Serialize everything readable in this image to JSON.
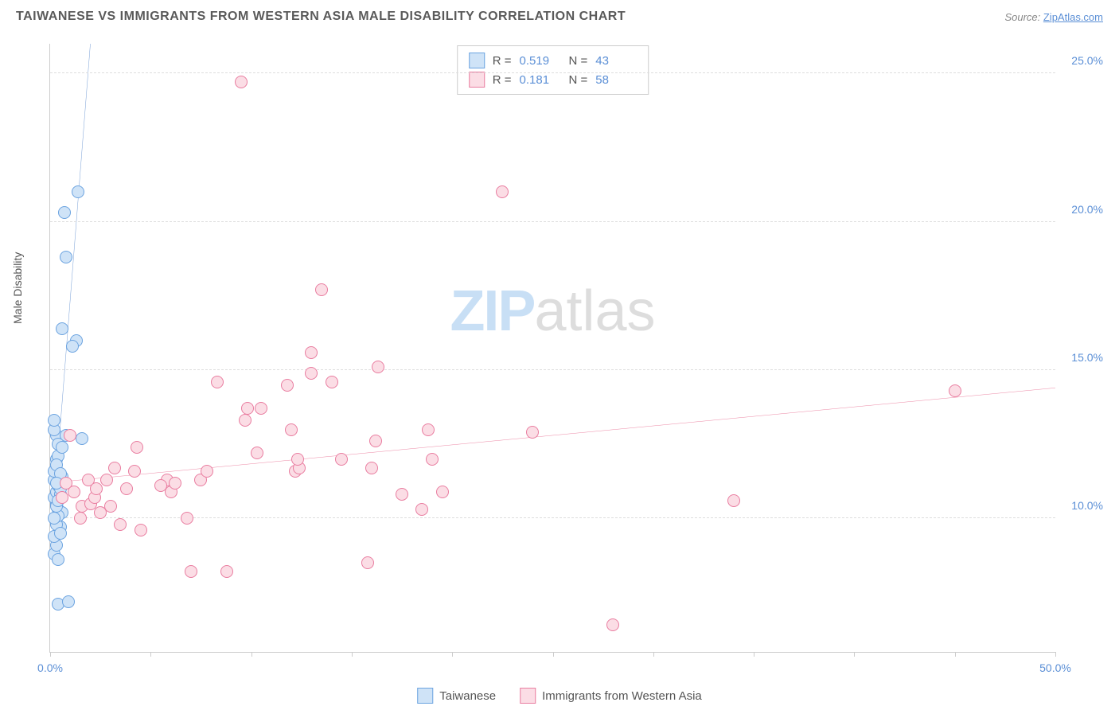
{
  "header": {
    "title": "TAIWANESE VS IMMIGRANTS FROM WESTERN ASIA MALE DISABILITY CORRELATION CHART",
    "source_prefix": "Source: ",
    "source_link": "ZipAtlas.com"
  },
  "watermark": {
    "zip": "ZIP",
    "atlas": "atlas"
  },
  "chart": {
    "type": "scatter",
    "y_axis_label": "Male Disability",
    "xlim": [
      0,
      50
    ],
    "ylim": [
      5.5,
      26
    ],
    "x_ticks": [
      0,
      5,
      10,
      15,
      20,
      25,
      30,
      35,
      40,
      45,
      50
    ],
    "x_tick_labels": {
      "0": "0.0%",
      "50": "50.0%"
    },
    "y_ticks": [
      10,
      15,
      20,
      25
    ],
    "y_tick_labels": {
      "10": "10.0%",
      "15": "15.0%",
      "20": "20.0%",
      "25": "25.0%"
    },
    "grid_color": "#dddddd",
    "axis_color": "#cccccc",
    "background_color": "#ffffff",
    "point_radius": 8,
    "series": [
      {
        "key": "taiwanese",
        "label": "Taiwanese",
        "R": "0.519",
        "N": "43",
        "fill": "#cfe3f7",
        "stroke": "#6ba3e0",
        "trend": {
          "color": "#3b74c4",
          "x1": 0.2,
          "y1": 10.5,
          "x2": 2.0,
          "y2": 26.0,
          "dash_beyond": true
        },
        "points": [
          [
            0.2,
            8.8
          ],
          [
            0.4,
            8.6
          ],
          [
            0.3,
            9.1
          ],
          [
            0.2,
            9.4
          ],
          [
            0.3,
            10.0
          ],
          [
            0.5,
            9.7
          ],
          [
            0.4,
            10.3
          ],
          [
            0.3,
            10.5
          ],
          [
            0.6,
            10.2
          ],
          [
            0.2,
            10.7
          ],
          [
            0.3,
            10.9
          ],
          [
            0.4,
            11.1
          ],
          [
            0.2,
            11.3
          ],
          [
            0.5,
            10.8
          ],
          [
            0.3,
            12.8
          ],
          [
            0.8,
            12.8
          ],
          [
            1.6,
            12.7
          ],
          [
            0.2,
            13.0
          ],
          [
            0.4,
            12.5
          ],
          [
            0.3,
            12.0
          ],
          [
            0.2,
            11.6
          ],
          [
            1.3,
            16.0
          ],
          [
            1.1,
            15.8
          ],
          [
            0.6,
            16.4
          ],
          [
            0.8,
            18.8
          ],
          [
            0.7,
            20.3
          ],
          [
            1.4,
            21.0
          ],
          [
            0.4,
            7.1
          ],
          [
            0.9,
            7.2
          ],
          [
            0.3,
            9.8
          ],
          [
            0.4,
            10.1
          ],
          [
            0.5,
            11.0
          ],
          [
            0.3,
            10.4
          ],
          [
            0.2,
            10.0
          ],
          [
            0.5,
            9.5
          ],
          [
            0.4,
            12.1
          ],
          [
            0.6,
            11.4
          ],
          [
            0.3,
            11.8
          ],
          [
            0.2,
            13.3
          ],
          [
            0.5,
            11.5
          ],
          [
            0.4,
            10.6
          ],
          [
            0.3,
            11.2
          ],
          [
            0.6,
            12.4
          ]
        ]
      },
      {
        "key": "western_asia",
        "label": "Immigrants from Western Asia",
        "R": "0.181",
        "N": "58",
        "fill": "#fbdde5",
        "stroke": "#e97da0",
        "trend": {
          "color": "#e4557e",
          "x1": 0,
          "y1": 11.2,
          "x2": 50,
          "y2": 14.4,
          "dash_beyond": false
        },
        "points": [
          [
            0.8,
            11.2
          ],
          [
            1.2,
            10.9
          ],
          [
            1.6,
            10.4
          ],
          [
            2.0,
            10.5
          ],
          [
            2.5,
            10.2
          ],
          [
            2.2,
            10.7
          ],
          [
            3.0,
            10.4
          ],
          [
            3.2,
            11.7
          ],
          [
            3.5,
            9.8
          ],
          [
            4.2,
            11.6
          ],
          [
            4.5,
            9.6
          ],
          [
            4.3,
            12.4
          ],
          [
            5.8,
            11.3
          ],
          [
            6.0,
            10.9
          ],
          [
            6.2,
            11.2
          ],
          [
            6.8,
            10.0
          ],
          [
            7.5,
            11.3
          ],
          [
            7.8,
            11.6
          ],
          [
            7.0,
            8.2
          ],
          [
            8.8,
            8.2
          ],
          [
            8.3,
            14.6
          ],
          [
            9.8,
            13.7
          ],
          [
            9.7,
            13.3
          ],
          [
            9.5,
            24.7
          ],
          [
            10.3,
            12.2
          ],
          [
            10.5,
            13.7
          ],
          [
            11.8,
            14.5
          ],
          [
            12.0,
            13.0
          ],
          [
            12.2,
            11.6
          ],
          [
            12.4,
            11.7
          ],
          [
            12.3,
            12.0
          ],
          [
            13.0,
            14.9
          ],
          [
            13.0,
            15.6
          ],
          [
            13.5,
            17.7
          ],
          [
            14.0,
            14.6
          ],
          [
            14.5,
            12.0
          ],
          [
            15.8,
            8.5
          ],
          [
            16.0,
            11.7
          ],
          [
            16.2,
            12.6
          ],
          [
            16.3,
            15.1
          ],
          [
            17.5,
            10.8
          ],
          [
            18.5,
            10.3
          ],
          [
            18.8,
            13.0
          ],
          [
            19.0,
            12.0
          ],
          [
            19.5,
            10.9
          ],
          [
            22.5,
            21.0
          ],
          [
            24.0,
            12.9
          ],
          [
            28.0,
            6.4
          ],
          [
            34.0,
            10.6
          ],
          [
            45.0,
            14.3
          ],
          [
            2.8,
            11.3
          ],
          [
            5.5,
            11.1
          ],
          [
            1.9,
            11.3
          ],
          [
            2.3,
            11.0
          ],
          [
            3.8,
            11.0
          ],
          [
            1.5,
            10.0
          ],
          [
            0.6,
            10.7
          ],
          [
            1.0,
            12.8
          ]
        ]
      }
    ]
  },
  "stats_legend": {
    "rows": [
      {
        "series_key": "taiwanese"
      },
      {
        "series_key": "western_asia"
      }
    ],
    "labels": {
      "R": "R =",
      "N": "N ="
    }
  }
}
